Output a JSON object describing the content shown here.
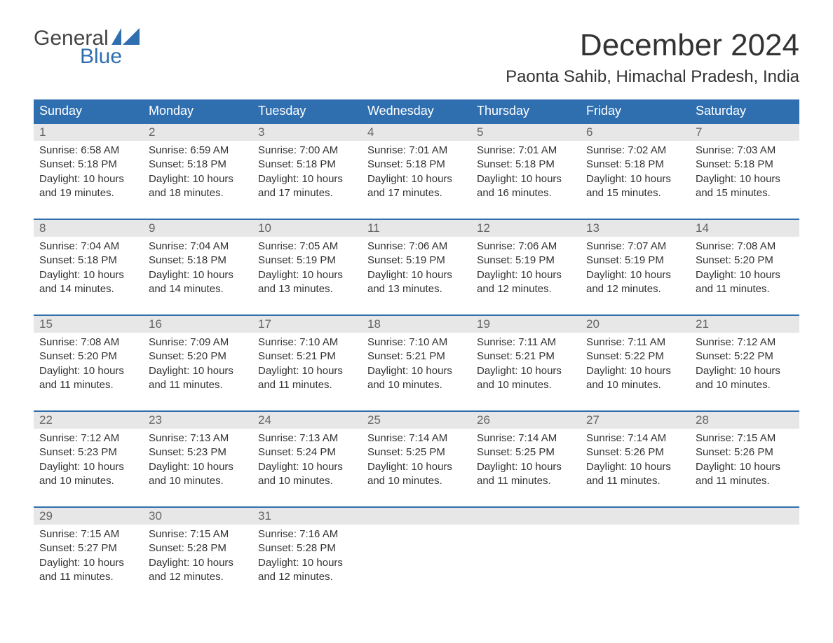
{
  "logo": {
    "word1": "General",
    "word2": "Blue",
    "shape_color": "#2f6fb0",
    "word1_color": "#444444",
    "word2_color": "#2f6fb0"
  },
  "title": "December 2024",
  "location": "Paonta Sahib, Himachal Pradesh, India",
  "colors": {
    "header_bg": "#2f6fb0",
    "header_text": "#ffffff",
    "date_row_bg": "#e7e7e7",
    "date_text": "#666666",
    "body_text": "#333333",
    "week_border": "#2f6fb0",
    "page_bg": "#ffffff"
  },
  "typography": {
    "month_title_fontsize": 44,
    "location_fontsize": 24,
    "day_header_fontsize": 18,
    "date_fontsize": 17,
    "cell_fontsize": 15
  },
  "day_names": [
    "Sunday",
    "Monday",
    "Tuesday",
    "Wednesday",
    "Thursday",
    "Friday",
    "Saturday"
  ],
  "weeks": [
    [
      {
        "date": "1",
        "sunrise": "Sunrise: 6:58 AM",
        "sunset": "Sunset: 5:18 PM",
        "dl1": "Daylight: 10 hours",
        "dl2": "and 19 minutes."
      },
      {
        "date": "2",
        "sunrise": "Sunrise: 6:59 AM",
        "sunset": "Sunset: 5:18 PM",
        "dl1": "Daylight: 10 hours",
        "dl2": "and 18 minutes."
      },
      {
        "date": "3",
        "sunrise": "Sunrise: 7:00 AM",
        "sunset": "Sunset: 5:18 PM",
        "dl1": "Daylight: 10 hours",
        "dl2": "and 17 minutes."
      },
      {
        "date": "4",
        "sunrise": "Sunrise: 7:01 AM",
        "sunset": "Sunset: 5:18 PM",
        "dl1": "Daylight: 10 hours",
        "dl2": "and 17 minutes."
      },
      {
        "date": "5",
        "sunrise": "Sunrise: 7:01 AM",
        "sunset": "Sunset: 5:18 PM",
        "dl1": "Daylight: 10 hours",
        "dl2": "and 16 minutes."
      },
      {
        "date": "6",
        "sunrise": "Sunrise: 7:02 AM",
        "sunset": "Sunset: 5:18 PM",
        "dl1": "Daylight: 10 hours",
        "dl2": "and 15 minutes."
      },
      {
        "date": "7",
        "sunrise": "Sunrise: 7:03 AM",
        "sunset": "Sunset: 5:18 PM",
        "dl1": "Daylight: 10 hours",
        "dl2": "and 15 minutes."
      }
    ],
    [
      {
        "date": "8",
        "sunrise": "Sunrise: 7:04 AM",
        "sunset": "Sunset: 5:18 PM",
        "dl1": "Daylight: 10 hours",
        "dl2": "and 14 minutes."
      },
      {
        "date": "9",
        "sunrise": "Sunrise: 7:04 AM",
        "sunset": "Sunset: 5:18 PM",
        "dl1": "Daylight: 10 hours",
        "dl2": "and 14 minutes."
      },
      {
        "date": "10",
        "sunrise": "Sunrise: 7:05 AM",
        "sunset": "Sunset: 5:19 PM",
        "dl1": "Daylight: 10 hours",
        "dl2": "and 13 minutes."
      },
      {
        "date": "11",
        "sunrise": "Sunrise: 7:06 AM",
        "sunset": "Sunset: 5:19 PM",
        "dl1": "Daylight: 10 hours",
        "dl2": "and 13 minutes."
      },
      {
        "date": "12",
        "sunrise": "Sunrise: 7:06 AM",
        "sunset": "Sunset: 5:19 PM",
        "dl1": "Daylight: 10 hours",
        "dl2": "and 12 minutes."
      },
      {
        "date": "13",
        "sunrise": "Sunrise: 7:07 AM",
        "sunset": "Sunset: 5:19 PM",
        "dl1": "Daylight: 10 hours",
        "dl2": "and 12 minutes."
      },
      {
        "date": "14",
        "sunrise": "Sunrise: 7:08 AM",
        "sunset": "Sunset: 5:20 PM",
        "dl1": "Daylight: 10 hours",
        "dl2": "and 11 minutes."
      }
    ],
    [
      {
        "date": "15",
        "sunrise": "Sunrise: 7:08 AM",
        "sunset": "Sunset: 5:20 PM",
        "dl1": "Daylight: 10 hours",
        "dl2": "and 11 minutes."
      },
      {
        "date": "16",
        "sunrise": "Sunrise: 7:09 AM",
        "sunset": "Sunset: 5:20 PM",
        "dl1": "Daylight: 10 hours",
        "dl2": "and 11 minutes."
      },
      {
        "date": "17",
        "sunrise": "Sunrise: 7:10 AM",
        "sunset": "Sunset: 5:21 PM",
        "dl1": "Daylight: 10 hours",
        "dl2": "and 11 minutes."
      },
      {
        "date": "18",
        "sunrise": "Sunrise: 7:10 AM",
        "sunset": "Sunset: 5:21 PM",
        "dl1": "Daylight: 10 hours",
        "dl2": "and 10 minutes."
      },
      {
        "date": "19",
        "sunrise": "Sunrise: 7:11 AM",
        "sunset": "Sunset: 5:21 PM",
        "dl1": "Daylight: 10 hours",
        "dl2": "and 10 minutes."
      },
      {
        "date": "20",
        "sunrise": "Sunrise: 7:11 AM",
        "sunset": "Sunset: 5:22 PM",
        "dl1": "Daylight: 10 hours",
        "dl2": "and 10 minutes."
      },
      {
        "date": "21",
        "sunrise": "Sunrise: 7:12 AM",
        "sunset": "Sunset: 5:22 PM",
        "dl1": "Daylight: 10 hours",
        "dl2": "and 10 minutes."
      }
    ],
    [
      {
        "date": "22",
        "sunrise": "Sunrise: 7:12 AM",
        "sunset": "Sunset: 5:23 PM",
        "dl1": "Daylight: 10 hours",
        "dl2": "and 10 minutes."
      },
      {
        "date": "23",
        "sunrise": "Sunrise: 7:13 AM",
        "sunset": "Sunset: 5:23 PM",
        "dl1": "Daylight: 10 hours",
        "dl2": "and 10 minutes."
      },
      {
        "date": "24",
        "sunrise": "Sunrise: 7:13 AM",
        "sunset": "Sunset: 5:24 PM",
        "dl1": "Daylight: 10 hours",
        "dl2": "and 10 minutes."
      },
      {
        "date": "25",
        "sunrise": "Sunrise: 7:14 AM",
        "sunset": "Sunset: 5:25 PM",
        "dl1": "Daylight: 10 hours",
        "dl2": "and 10 minutes."
      },
      {
        "date": "26",
        "sunrise": "Sunrise: 7:14 AM",
        "sunset": "Sunset: 5:25 PM",
        "dl1": "Daylight: 10 hours",
        "dl2": "and 11 minutes."
      },
      {
        "date": "27",
        "sunrise": "Sunrise: 7:14 AM",
        "sunset": "Sunset: 5:26 PM",
        "dl1": "Daylight: 10 hours",
        "dl2": "and 11 minutes."
      },
      {
        "date": "28",
        "sunrise": "Sunrise: 7:15 AM",
        "sunset": "Sunset: 5:26 PM",
        "dl1": "Daylight: 10 hours",
        "dl2": "and 11 minutes."
      }
    ],
    [
      {
        "date": "29",
        "sunrise": "Sunrise: 7:15 AM",
        "sunset": "Sunset: 5:27 PM",
        "dl1": "Daylight: 10 hours",
        "dl2": "and 11 minutes."
      },
      {
        "date": "30",
        "sunrise": "Sunrise: 7:15 AM",
        "sunset": "Sunset: 5:28 PM",
        "dl1": "Daylight: 10 hours",
        "dl2": "and 12 minutes."
      },
      {
        "date": "31",
        "sunrise": "Sunrise: 7:16 AM",
        "sunset": "Sunset: 5:28 PM",
        "dl1": "Daylight: 10 hours",
        "dl2": "and 12 minutes."
      },
      null,
      null,
      null,
      null
    ]
  ]
}
